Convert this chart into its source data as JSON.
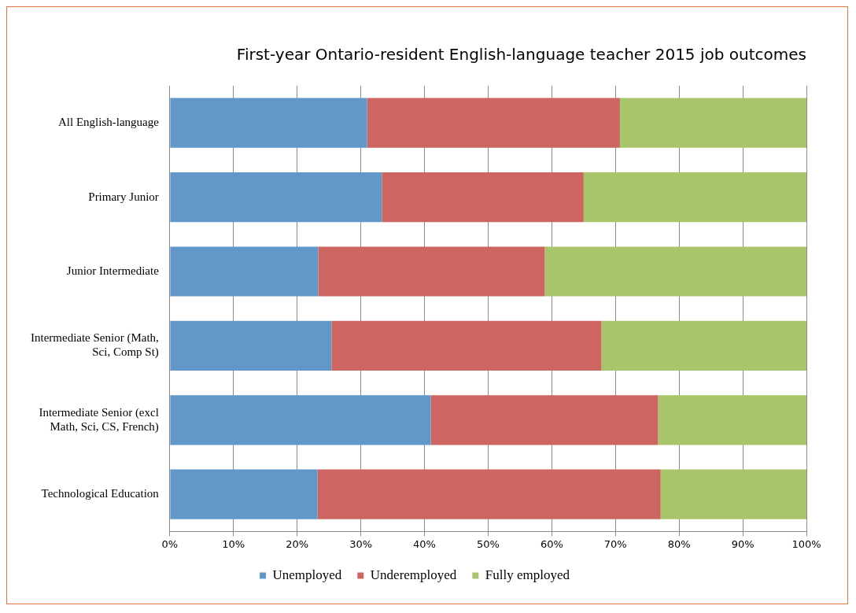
{
  "chart_data": {
    "type": "bar",
    "orientation": "horizontal",
    "stacked": true,
    "title": "First-year Ontario-resident English-language teacher 2015 job outcomes",
    "categories": [
      "All English-language",
      "Primary Junior",
      "Junior Intermediate",
      "Intermediate Senior (Math, Sci, Comp St)",
      "Intermediate Senior (excl Math, Sci, CS, French)",
      "Technological Education"
    ],
    "series": [
      {
        "name": "Unemployed",
        "color": "#6197c9",
        "values": [
          31,
          33.3,
          23.3,
          25.4,
          41,
          23.2
        ]
      },
      {
        "name": "Underemployed",
        "color": "#cd6660",
        "values": [
          39.7,
          31.7,
          35.6,
          42.4,
          35.7,
          53.9
        ]
      },
      {
        "name": "Fully employed",
        "color": "#a9c56b",
        "values": [
          29.3,
          35,
          41.1,
          32.2,
          23.3,
          22.9
        ]
      }
    ],
    "xlim": [
      0,
      100
    ],
    "xticks": [
      {
        "value": 0,
        "label": "0%"
      },
      {
        "value": 10,
        "label": "10%"
      },
      {
        "value": 20,
        "label": "20%"
      },
      {
        "value": 30,
        "label": "30%"
      },
      {
        "value": 40,
        "label": "40%"
      },
      {
        "value": 50,
        "label": "50%"
      },
      {
        "value": 60,
        "label": "60%"
      },
      {
        "value": 70,
        "label": "70%"
      },
      {
        "value": 80,
        "label": "80%"
      },
      {
        "value": 90,
        "label": "90%"
      },
      {
        "value": 100,
        "label": "100%"
      }
    ],
    "grid": "x",
    "legend": "bottom"
  }
}
